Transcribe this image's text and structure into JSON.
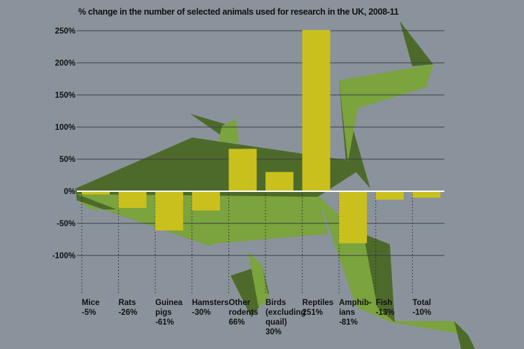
{
  "chart_data": {
    "type": "bar",
    "title": "% change in the number of selected animals used for research in the UK, 2008-11",
    "categories": [
      "Mice",
      "Rats",
      "Guinea pigs",
      "Hamsters",
      "Other rodents",
      "Birds (excluding quail)",
      "Reptiles",
      "Amphibians",
      "Fish",
      "Total"
    ],
    "category_label_lines": [
      [
        "Mice",
        "-5%"
      ],
      [
        "Rats",
        "-26%"
      ],
      [
        "Guinea",
        "pigs",
        "-61%"
      ],
      [
        "Hamsters",
        "-30%"
      ],
      [
        "Other",
        "rodents",
        "66%"
      ],
      [
        "Birds",
        "(excluding",
        "quail)",
        "30%"
      ],
      [
        "Reptiles",
        "251%"
      ],
      [
        "Amphib-",
        "ians",
        "-81%"
      ],
      [
        "Fish",
        "-13%"
      ],
      [
        "Total",
        "-10%"
      ]
    ],
    "values": [
      -5,
      -26,
      -61,
      -30,
      66,
      30,
      251,
      -81,
      -13,
      -10
    ],
    "yticks": [
      "250%",
      "200%",
      "150%",
      "100%",
      "50%",
      "0%",
      "-50%",
      "-100%"
    ],
    "ytick_values": [
      250,
      200,
      150,
      100,
      50,
      0,
      -50,
      -100
    ],
    "ylim": [
      -100,
      250
    ],
    "xlabel": "",
    "ylabel": "",
    "grid": true,
    "colors": {
      "bar": "#c9c01e",
      "background": "#8a939b",
      "fish_light": "#7ba33e",
      "fish_dark": "#4e6a2b",
      "grid": "#3a3f44",
      "zero_line": "#ffffff"
    }
  }
}
